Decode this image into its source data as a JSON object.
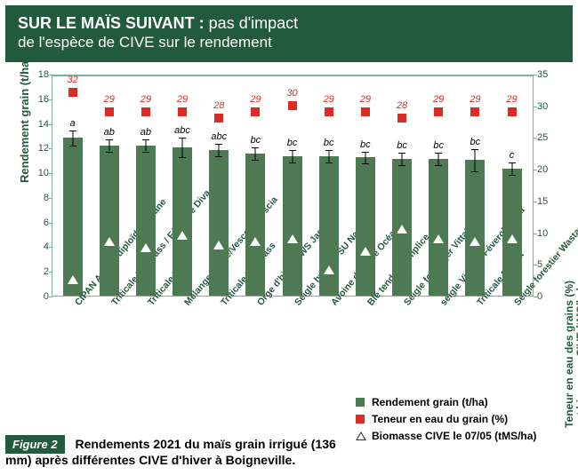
{
  "banner": {
    "title_strong": "SUR LE MAÏS SUIVANT :",
    "title_rest": " pas d'impact",
    "subtitle": "de l'espèce de CIVE sur le rendement"
  },
  "chart": {
    "type": "bar+scatter",
    "y_left": {
      "label": "Rendement grain (t/ha)",
      "min": 0,
      "max": 18,
      "step": 2
    },
    "y_right": {
      "label_l1": "Teneur en eau des grains (%)",
      "label_l2": "et biomasse CIVE (tMS/ha)",
      "min": 0,
      "max": 35,
      "step": 5
    },
    "bar_color": "#4d7a52",
    "square_color": "#db2b22",
    "triangle_color": "#ffffff",
    "categories": [
      {
        "name": "CIPAN Avoine diploïde Océane",
        "yield": 12.8,
        "err": 0.6,
        "sig": "a",
        "moist": 32,
        "bio": 2.5
      },
      {
        "name": "Triticale Néomass / Féverole Diva",
        "yield": 12.2,
        "err": 0.5,
        "sig": "ab",
        "moist": 29,
        "bio": 8.5
      },
      {
        "name": "Triticale Bikini",
        "yield": 12.2,
        "err": 0.5,
        "sig": "ab",
        "moist": 29,
        "bio": 7.5
      },
      {
        "name": "Mélange Seigle/Vesce Silvescia",
        "yield": 12.0,
        "err": 0.8,
        "sig": "abc",
        "moist": 29,
        "bio": 9.5
      },
      {
        "name": "Triticale Néomass",
        "yield": 11.8,
        "err": 0.5,
        "sig": "abc",
        "moist": 28,
        "bio": 8.0
      },
      {
        "name": "Orge d'hiver KWS Jaguar",
        "yield": 11.5,
        "err": 0.5,
        "sig": "bc",
        "moist": 29,
        "bio": 8.5
      },
      {
        "name": "Seigle hybride SU Nasri",
        "yield": 11.3,
        "err": 0.5,
        "sig": "bc",
        "moist": 30,
        "bio": 9.0
      },
      {
        "name": "Avoine diploïde Océane",
        "yield": 11.3,
        "err": 0.5,
        "sig": "bc",
        "moist": 29,
        "bio": 4.0
      },
      {
        "name": "Blé tendre Complice",
        "yield": 11.2,
        "err": 0.5,
        "sig": "bc",
        "moist": 29,
        "bio": 7.0
      },
      {
        "name": "Seigle fourrager Vittallo",
        "yield": 11.1,
        "err": 0.5,
        "sig": "bc",
        "moist": 28,
        "bio": 10.5
      },
      {
        "name": "seigle Vitallo / Féverole Diva",
        "yield": 11.1,
        "err": 0.5,
        "sig": "bc",
        "moist": 29,
        "bio": 9.0
      },
      {
        "name": "Triticale Bréhat",
        "yield": 11.0,
        "err": 0.9,
        "sig": "bc",
        "moist": 29,
        "bio": 8.5
      },
      {
        "name": "Seigle forestier Wastauro",
        "yield": 10.3,
        "err": 0.5,
        "sig": "c",
        "moist": 29,
        "bio": 9.0
      }
    ]
  },
  "legend": {
    "yield": "Rendement grain (t/ha)",
    "moist": "Teneur en eau du grain (%)",
    "bio": "Biomasse CIVE le 07/05 (tMS/ha)"
  },
  "figure": {
    "badge": "Figure 2",
    "caption": "Rendements 2021 du maïs grain irrigué (136 mm) après différentes CIVE d'hiver à Boigneville."
  }
}
